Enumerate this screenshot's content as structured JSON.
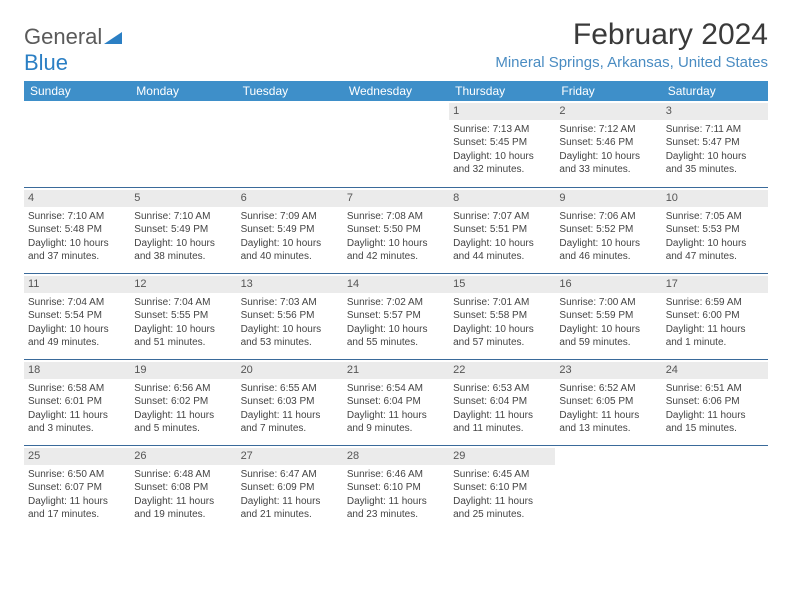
{
  "logo": {
    "text1": "General",
    "text2": "Blue"
  },
  "title": "February 2024",
  "location": "Mineral Springs, Arkansas, United States",
  "colors": {
    "header_bg": "#3e8fc9",
    "header_text": "#ffffff",
    "row_border": "#3a6a9a",
    "daynum_bg": "#ebebeb",
    "location_color": "#4a8cc2"
  },
  "day_names": [
    "Sunday",
    "Monday",
    "Tuesday",
    "Wednesday",
    "Thursday",
    "Friday",
    "Saturday"
  ],
  "weeks": [
    [
      null,
      null,
      null,
      null,
      {
        "n": "1",
        "sr": "7:13 AM",
        "ss": "5:45 PM",
        "dl": "10 hours and 32 minutes."
      },
      {
        "n": "2",
        "sr": "7:12 AM",
        "ss": "5:46 PM",
        "dl": "10 hours and 33 minutes."
      },
      {
        "n": "3",
        "sr": "7:11 AM",
        "ss": "5:47 PM",
        "dl": "10 hours and 35 minutes."
      }
    ],
    [
      {
        "n": "4",
        "sr": "7:10 AM",
        "ss": "5:48 PM",
        "dl": "10 hours and 37 minutes."
      },
      {
        "n": "5",
        "sr": "7:10 AM",
        "ss": "5:49 PM",
        "dl": "10 hours and 38 minutes."
      },
      {
        "n": "6",
        "sr": "7:09 AM",
        "ss": "5:49 PM",
        "dl": "10 hours and 40 minutes."
      },
      {
        "n": "7",
        "sr": "7:08 AM",
        "ss": "5:50 PM",
        "dl": "10 hours and 42 minutes."
      },
      {
        "n": "8",
        "sr": "7:07 AM",
        "ss": "5:51 PM",
        "dl": "10 hours and 44 minutes."
      },
      {
        "n": "9",
        "sr": "7:06 AM",
        "ss": "5:52 PM",
        "dl": "10 hours and 46 minutes."
      },
      {
        "n": "10",
        "sr": "7:05 AM",
        "ss": "5:53 PM",
        "dl": "10 hours and 47 minutes."
      }
    ],
    [
      {
        "n": "11",
        "sr": "7:04 AM",
        "ss": "5:54 PM",
        "dl": "10 hours and 49 minutes."
      },
      {
        "n": "12",
        "sr": "7:04 AM",
        "ss": "5:55 PM",
        "dl": "10 hours and 51 minutes."
      },
      {
        "n": "13",
        "sr": "7:03 AM",
        "ss": "5:56 PM",
        "dl": "10 hours and 53 minutes."
      },
      {
        "n": "14",
        "sr": "7:02 AM",
        "ss": "5:57 PM",
        "dl": "10 hours and 55 minutes."
      },
      {
        "n": "15",
        "sr": "7:01 AM",
        "ss": "5:58 PM",
        "dl": "10 hours and 57 minutes."
      },
      {
        "n": "16",
        "sr": "7:00 AM",
        "ss": "5:59 PM",
        "dl": "10 hours and 59 minutes."
      },
      {
        "n": "17",
        "sr": "6:59 AM",
        "ss": "6:00 PM",
        "dl": "11 hours and 1 minute."
      }
    ],
    [
      {
        "n": "18",
        "sr": "6:58 AM",
        "ss": "6:01 PM",
        "dl": "11 hours and 3 minutes."
      },
      {
        "n": "19",
        "sr": "6:56 AM",
        "ss": "6:02 PM",
        "dl": "11 hours and 5 minutes."
      },
      {
        "n": "20",
        "sr": "6:55 AM",
        "ss": "6:03 PM",
        "dl": "11 hours and 7 minutes."
      },
      {
        "n": "21",
        "sr": "6:54 AM",
        "ss": "6:04 PM",
        "dl": "11 hours and 9 minutes."
      },
      {
        "n": "22",
        "sr": "6:53 AM",
        "ss": "6:04 PM",
        "dl": "11 hours and 11 minutes."
      },
      {
        "n": "23",
        "sr": "6:52 AM",
        "ss": "6:05 PM",
        "dl": "11 hours and 13 minutes."
      },
      {
        "n": "24",
        "sr": "6:51 AM",
        "ss": "6:06 PM",
        "dl": "11 hours and 15 minutes."
      }
    ],
    [
      {
        "n": "25",
        "sr": "6:50 AM",
        "ss": "6:07 PM",
        "dl": "11 hours and 17 minutes."
      },
      {
        "n": "26",
        "sr": "6:48 AM",
        "ss": "6:08 PM",
        "dl": "11 hours and 19 minutes."
      },
      {
        "n": "27",
        "sr": "6:47 AM",
        "ss": "6:09 PM",
        "dl": "11 hours and 21 minutes."
      },
      {
        "n": "28",
        "sr": "6:46 AM",
        "ss": "6:10 PM",
        "dl": "11 hours and 23 minutes."
      },
      {
        "n": "29",
        "sr": "6:45 AM",
        "ss": "6:10 PM",
        "dl": "11 hours and 25 minutes."
      },
      null,
      null
    ]
  ],
  "labels": {
    "sunrise": "Sunrise: ",
    "sunset": "Sunset: ",
    "daylight": "Daylight: "
  }
}
